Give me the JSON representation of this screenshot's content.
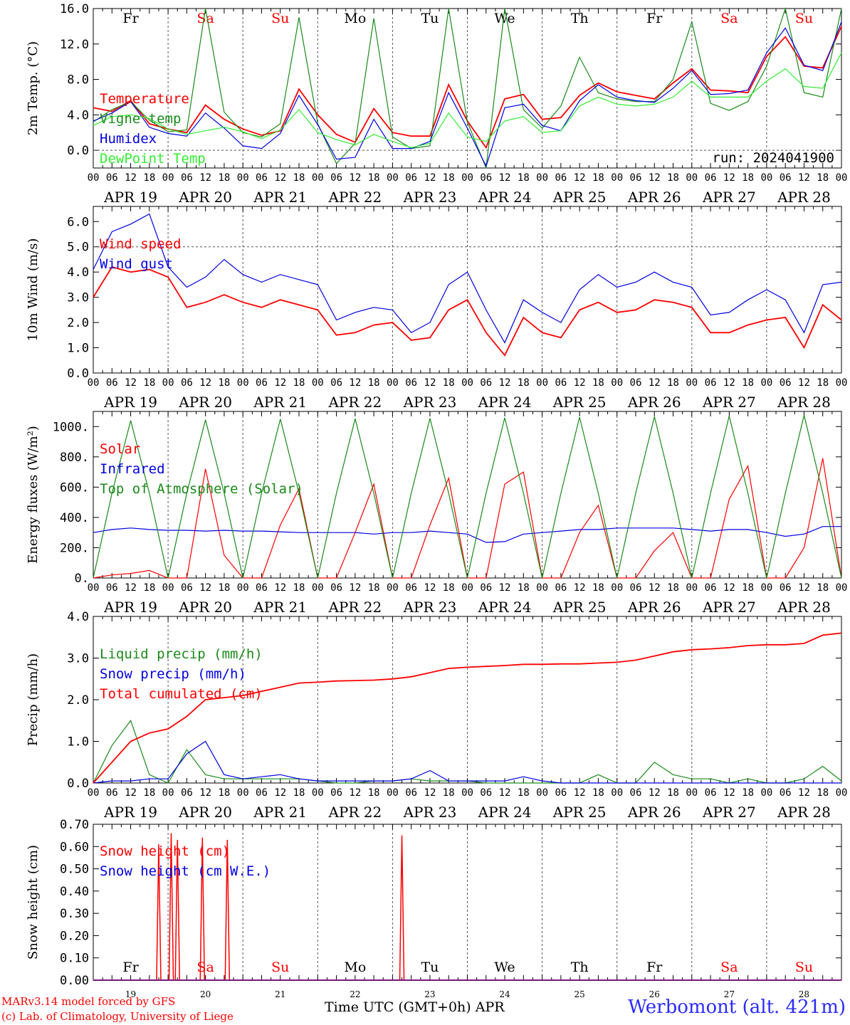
{
  "footer": {
    "model": "MARv3.14 model forced by GFS",
    "copyright": "(c) Lab. of Climatology, University of Liege",
    "xlabel": "Time UTC (GMT+0h) APR",
    "station": "Werbomont (alt. 421m)"
  },
  "colors": {
    "red": "#ff0000",
    "blue": "#0000e0",
    "green": "#1a8a1a",
    "lightgreen": "#33ee33",
    "grid": "#777777"
  },
  "days": {
    "weekdays": [
      "Fr",
      "Sa",
      "Su",
      "Mo",
      "Tu",
      "We",
      "Th",
      "Fr",
      "Sa",
      "Su"
    ],
    "weekday_weekend": [
      false,
      true,
      true,
      false,
      false,
      false,
      false,
      false,
      true,
      true
    ],
    "dates": [
      "APR 19",
      "APR 20",
      "APR 21",
      "APR 22",
      "APR 23",
      "APR 24",
      "APR 25",
      "APR 26",
      "APR 27",
      "APR 28"
    ],
    "numbers": [
      "19",
      "20",
      "21",
      "22",
      "23",
      "24",
      "25",
      "26",
      "27",
      "28"
    ],
    "hour_ticks": [
      "00",
      "06",
      "12",
      "18"
    ],
    "last_tick": "00"
  },
  "chart_data": [
    {
      "type": "line",
      "id": "temperature",
      "ylabel": "2m Temp. (°C)",
      "ylim": [
        -2,
        16
      ],
      "yticks": [
        "0.0",
        "4.0",
        "8.0",
        "12.0",
        "16.0"
      ],
      "yticks_values": [
        0,
        4,
        8,
        12,
        16
      ],
      "annotation": "run: 2024041900",
      "x_hours": [
        0,
        6,
        12,
        18,
        24,
        30,
        36,
        42,
        48,
        54,
        60,
        66,
        72,
        78,
        84,
        90,
        96,
        102,
        108,
        114,
        120,
        126,
        132,
        138,
        144,
        150,
        156,
        162,
        168,
        174,
        180,
        186,
        192,
        198,
        204,
        210,
        216,
        222,
        228,
        234,
        240
      ],
      "series": [
        {
          "name": "Temperature",
          "color": "red",
          "values": [
            4.8,
            4.4,
            5.6,
            3.0,
            2.4,
            2.0,
            5.1,
            3.5,
            2.4,
            1.7,
            2.2,
            6.9,
            4.0,
            1.8,
            0.9,
            4.7,
            2.0,
            1.6,
            1.6,
            7.4,
            3.3,
            0.3,
            5.8,
            6.3,
            3.5,
            3.7,
            6.2,
            7.6,
            6.6,
            6.2,
            5.8,
            7.6,
            9.2,
            6.8,
            6.7,
            6.5,
            10.6,
            12.8,
            9.5,
            9.3,
            14.0
          ]
        },
        {
          "name": "Vigne temp",
          "color": "green",
          "values": [
            3.2,
            4.6,
            5.5,
            3.4,
            2.1,
            2.3,
            16.0,
            4.3,
            2.0,
            1.5,
            3.0,
            15.0,
            3.0,
            -1.5,
            0.8,
            14.9,
            1.5,
            0.2,
            0.5,
            16.0,
            3.2,
            -2.0,
            16.0,
            4.6,
            2.5,
            5.0,
            10.5,
            6.5,
            5.8,
            5.5,
            5.5,
            8.0,
            14.5,
            5.3,
            4.5,
            5.5,
            9.5,
            16.0,
            6.5,
            6.0,
            16.0
          ]
        },
        {
          "name": "Humidex",
          "color": "blue",
          "values": [
            3.3,
            4.2,
            5.5,
            2.6,
            1.9,
            1.6,
            4.2,
            2.5,
            0.5,
            0.2,
            1.9,
            6.2,
            2.9,
            -1.0,
            -0.8,
            3.5,
            0.2,
            0.2,
            1.0,
            6.5,
            2.5,
            -1.8,
            4.8,
            5.2,
            2.8,
            2.2,
            5.6,
            7.4,
            6.0,
            5.6,
            5.4,
            7.0,
            9.0,
            6.3,
            6.4,
            6.8,
            11.0,
            13.8,
            9.6,
            9.0,
            14.5
          ]
        },
        {
          "name": "DewPoint Temp",
          "color": "lightgreen",
          "values": [
            2.8,
            3.8,
            4.0,
            3.6,
            2.4,
            1.8,
            2.2,
            2.6,
            2.1,
            1.3,
            2.3,
            4.6,
            2.0,
            1.2,
            0.6,
            1.8,
            1.0,
            0.3,
            0.8,
            4.2,
            1.5,
            1.0,
            3.3,
            3.8,
            2.0,
            2.2,
            5.0,
            6.0,
            5.2,
            5.0,
            5.2,
            6.0,
            7.8,
            6.0,
            6.0,
            6.0,
            7.8,
            9.2,
            7.2,
            7.0,
            11.0
          ]
        }
      ]
    },
    {
      "type": "line",
      "id": "wind",
      "ylabel": "10m Wind (m/s)",
      "ylim": [
        0,
        6.6
      ],
      "yticks": [
        "0.0",
        "1.0",
        "2.0",
        "3.0",
        "4.0",
        "5.0",
        "6.0"
      ],
      "yticks_values": [
        0,
        1,
        2,
        3,
        4,
        5,
        6
      ],
      "ref_line": 5.0,
      "x_hours": [
        0,
        6,
        12,
        18,
        24,
        30,
        36,
        42,
        48,
        54,
        60,
        66,
        72,
        78,
        84,
        90,
        96,
        102,
        108,
        114,
        120,
        126,
        132,
        138,
        144,
        150,
        156,
        162,
        168,
        174,
        180,
        186,
        192,
        198,
        204,
        210,
        216,
        222,
        228,
        234,
        240
      ],
      "series": [
        {
          "name": "Wind speed",
          "color": "red",
          "values": [
            3.0,
            4.2,
            4.0,
            4.1,
            3.8,
            2.6,
            2.8,
            3.1,
            2.8,
            2.6,
            2.9,
            2.7,
            2.5,
            1.5,
            1.6,
            1.9,
            2.0,
            1.3,
            1.4,
            2.5,
            2.9,
            1.6,
            0.7,
            2.2,
            1.6,
            1.4,
            2.5,
            2.8,
            2.4,
            2.5,
            2.9,
            2.8,
            2.6,
            1.6,
            1.6,
            1.9,
            2.1,
            2.2,
            1.0,
            2.7,
            2.1
          ]
        },
        {
          "name": "Wind gust",
          "color": "blue",
          "values": [
            4.1,
            5.6,
            5.9,
            6.3,
            4.2,
            3.4,
            3.8,
            4.5,
            3.9,
            3.6,
            3.9,
            3.7,
            3.5,
            2.1,
            2.4,
            2.6,
            2.5,
            1.6,
            2.0,
            3.5,
            4.0,
            2.5,
            1.2,
            2.9,
            2.4,
            2.0,
            3.3,
            3.9,
            3.4,
            3.6,
            4.0,
            3.6,
            3.4,
            2.3,
            2.4,
            2.9,
            3.3,
            2.9,
            1.6,
            3.5,
            3.6
          ]
        }
      ]
    },
    {
      "type": "line",
      "id": "energy",
      "ylabel": "Energy fluxes (W/m²)",
      "ylim": [
        0,
        1100
      ],
      "yticks": [
        "0.",
        "200.",
        "400.",
        "600.",
        "800.",
        "1000."
      ],
      "yticks_values": [
        0,
        200,
        400,
        600,
        800,
        1000
      ],
      "x_hours": [
        0,
        6,
        12,
        18,
        24,
        30,
        36,
        42,
        48,
        54,
        60,
        66,
        72,
        78,
        84,
        90,
        96,
        102,
        108,
        114,
        120,
        126,
        132,
        138,
        144,
        150,
        156,
        162,
        168,
        174,
        180,
        186,
        192,
        198,
        204,
        210,
        216,
        222,
        228,
        234,
        240
      ],
      "series": [
        {
          "name": "Solar",
          "color": "red",
          "values": [
            0,
            20,
            30,
            50,
            0,
            0,
            720,
            150,
            0,
            0,
            350,
            590,
            0,
            0,
            300,
            620,
            0,
            0,
            350,
            660,
            0,
            0,
            620,
            700,
            0,
            0,
            300,
            480,
            0,
            0,
            180,
            300,
            0,
            0,
            520,
            740,
            0,
            0,
            200,
            790,
            0
          ]
        },
        {
          "name": "Infrared",
          "color": "blue",
          "values": [
            300,
            320,
            330,
            320,
            315,
            315,
            310,
            315,
            310,
            310,
            305,
            300,
            300,
            300,
            300,
            290,
            300,
            300,
            310,
            300,
            290,
            235,
            240,
            290,
            300,
            310,
            320,
            320,
            330,
            330,
            330,
            330,
            320,
            310,
            320,
            320,
            300,
            275,
            290,
            340,
            340
          ]
        },
        {
          "name": "Top of Atmosphere (Solar)",
          "color": "green",
          "values": [
            0,
            560,
            1040,
            560,
            0,
            560,
            1045,
            560,
            0,
            560,
            1050,
            560,
            0,
            560,
            1052,
            560,
            0,
            560,
            1055,
            560,
            0,
            560,
            1058,
            560,
            0,
            560,
            1062,
            560,
            0,
            560,
            1065,
            560,
            0,
            560,
            1070,
            560,
            0,
            560,
            1075,
            560,
            0
          ]
        }
      ]
    },
    {
      "type": "line",
      "id": "precip",
      "ylabel": "Precip (mm/h)",
      "ylim": [
        0,
        4.0
      ],
      "yticks": [
        "0.0",
        "1.0",
        "2.0",
        "3.0",
        "4.0"
      ],
      "yticks_values": [
        0,
        1,
        2,
        3,
        4
      ],
      "x_hours": [
        0,
        6,
        12,
        18,
        24,
        30,
        36,
        42,
        48,
        54,
        60,
        66,
        72,
        78,
        84,
        90,
        96,
        102,
        108,
        114,
        120,
        126,
        132,
        138,
        144,
        150,
        156,
        162,
        168,
        174,
        180,
        186,
        192,
        198,
        204,
        210,
        216,
        222,
        228,
        234,
        240
      ],
      "series": [
        {
          "name": "Liquid precip (mm/h)",
          "color": "green",
          "values": [
            0,
            0.9,
            1.5,
            0.2,
            0,
            0.8,
            0.2,
            0.1,
            0.1,
            0.1,
            0.1,
            0.1,
            0.05,
            0,
            0,
            0.05,
            0.05,
            0.1,
            0.05,
            0.05,
            0.05,
            0,
            0,
            0,
            0,
            0,
            0,
            0.2,
            0,
            0,
            0.5,
            0.2,
            0.1,
            0.1,
            0,
            0.1,
            0,
            0,
            0.1,
            0.4,
            0.05
          ]
        },
        {
          "name": "Snow precip (mm/h)",
          "color": "blue",
          "values": [
            0,
            0.05,
            0.05,
            0.1,
            0.1,
            0.7,
            1.0,
            0.2,
            0.1,
            0.15,
            0.2,
            0.1,
            0.05,
            0.05,
            0.05,
            0.05,
            0.05,
            0.1,
            0.3,
            0.05,
            0.05,
            0.05,
            0.05,
            0.15,
            0.05,
            0,
            0,
            0,
            0,
            0,
            0,
            0,
            0,
            0,
            0,
            0,
            0,
            0,
            0,
            0,
            0
          ]
        },
        {
          "name": "Total cumulated (cm)",
          "color": "red",
          "values": [
            0,
            0.5,
            1.0,
            1.2,
            1.3,
            1.6,
            2.0,
            2.05,
            2.1,
            2.2,
            2.3,
            2.4,
            2.42,
            2.45,
            2.46,
            2.47,
            2.5,
            2.55,
            2.65,
            2.75,
            2.78,
            2.8,
            2.82,
            2.85,
            2.85,
            2.86,
            2.86,
            2.88,
            2.9,
            2.95,
            3.05,
            3.15,
            3.2,
            3.22,
            3.25,
            3.3,
            3.32,
            3.32,
            3.35,
            3.55,
            3.6
          ]
        }
      ]
    },
    {
      "type": "line",
      "id": "snow",
      "ylabel": "Snow height (cm)",
      "ylim": [
        0,
        0.7
      ],
      "yticks": [
        "0.00",
        "0.10",
        "0.20",
        "0.30",
        "0.40",
        "0.50",
        "0.60",
        "0.70"
      ],
      "yticks_values": [
        0,
        0.1,
        0.2,
        0.3,
        0.4,
        0.5,
        0.6,
        0.7
      ],
      "spikes_hours": [
        21,
        25,
        27,
        35,
        43,
        99
      ],
      "spikes_values": [
        0.61,
        0.66,
        0.63,
        0.64,
        0.63,
        0.65
      ],
      "series": [
        {
          "name": "Snow height (cm)",
          "color": "red",
          "values": []
        },
        {
          "name": "Snow height (cm W.E.)",
          "color": "blue",
          "values": []
        }
      ]
    }
  ]
}
